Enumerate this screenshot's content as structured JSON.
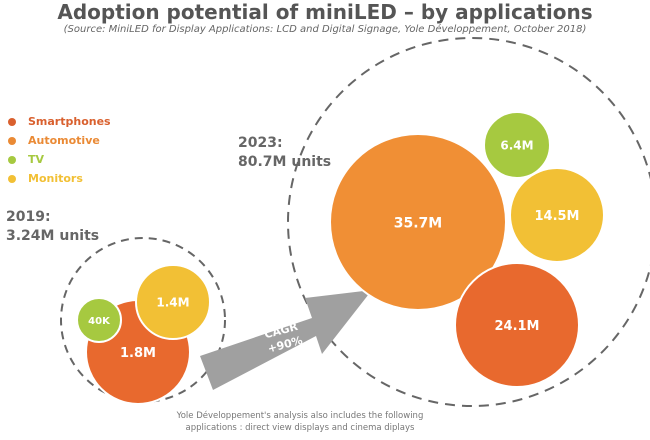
{
  "title": "Adoption potential of miniLED – by applications",
  "subtitle": "(Source: MiniLED for Display Applications: LCD and Digital Signage, Yole Développement, October 2018)",
  "chart_data": {
    "type": "bubble",
    "legend": [
      {
        "name": "Smartphones",
        "color": "#d9602e"
      },
      {
        "name": "Automotive",
        "color": "#ea8a35"
      },
      {
        "name": "TV",
        "color": "#a6c940"
      },
      {
        "name": "Monitors",
        "color": "#f2c035"
      }
    ],
    "groups": [
      {
        "label": "2019:",
        "total": "3.24M units",
        "bubbles": [
          {
            "label": "1.8M",
            "color": "#e8692e"
          },
          {
            "label": "1.4M",
            "color": "#f2c035"
          },
          {
            "label": "40K",
            "color": "#a6c940"
          }
        ]
      },
      {
        "label": "2023:",
        "total": "80.7M units",
        "bubbles": [
          {
            "label": "35.7M",
            "color": "#f08f35"
          },
          {
            "label": "6.4M",
            "color": "#a6c940"
          },
          {
            "label": "14.5M",
            "color": "#f2c035"
          },
          {
            "label": "24.1M",
            "color": "#e8692e"
          }
        ]
      }
    ],
    "arrow": {
      "line1": "CAGR",
      "line2": "+90%"
    }
  },
  "note": {
    "line1": "Yole Développement's analysis also includes the following",
    "line2": "applications : direct view displays and cinema diplays"
  }
}
